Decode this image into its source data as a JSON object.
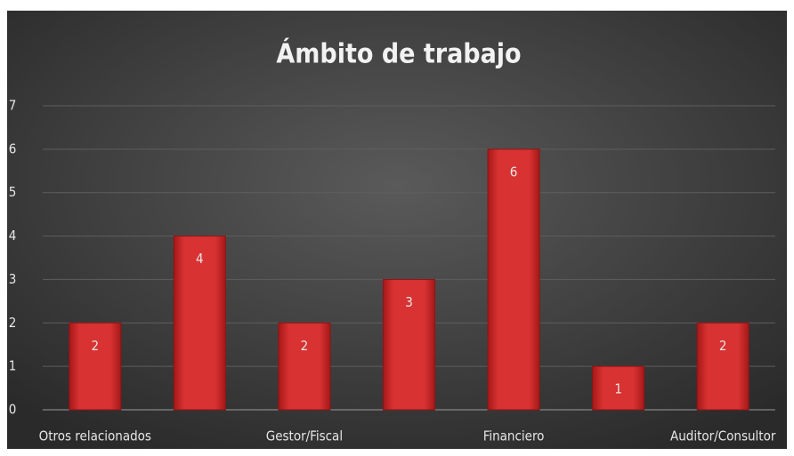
{
  "chart_data": {
    "type": "bar",
    "title": "Ámbito de trabajo",
    "categories": [
      "Otros relacionados",
      null,
      "Gestor/Fiscal",
      null,
      "Financiero",
      null,
      "Auditor/Consultor"
    ],
    "values": [
      2,
      4,
      2,
      3,
      6,
      1,
      2
    ],
    "color": "#d42a2a",
    "ylim": [
      0,
      7
    ],
    "yticks": [
      0,
      1,
      2,
      3,
      4,
      5,
      6,
      7
    ],
    "grid": true
  }
}
